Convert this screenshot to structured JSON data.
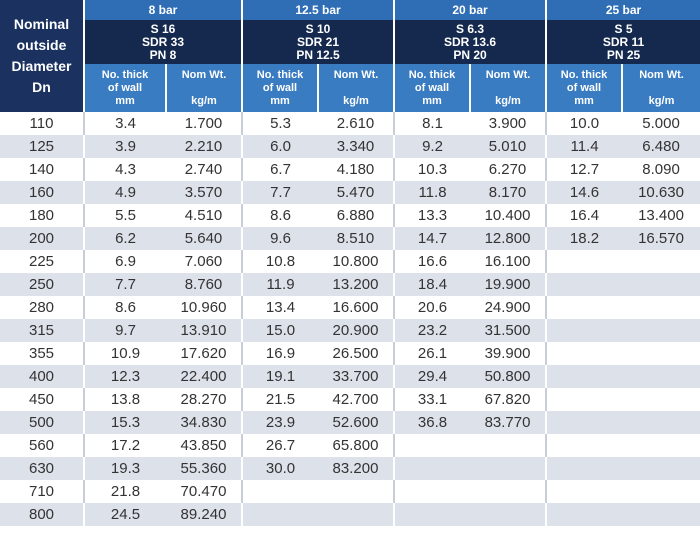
{
  "header": {
    "corner_lines": [
      "Nominal",
      "outside",
      "Diameter",
      "Dn"
    ],
    "groups": [
      {
        "pressure": "8 bar",
        "spec": [
          "S 16",
          "SDR 33",
          "PN 8"
        ]
      },
      {
        "pressure": "12.5 bar",
        "spec": [
          "S 10",
          "SDR 21",
          "PN 12.5"
        ]
      },
      {
        "pressure": "20 bar",
        "spec": [
          "S 6.3",
          "SDR 13.6",
          "PN 20"
        ]
      },
      {
        "pressure": "25 bar",
        "spec": [
          "S 5",
          "SDR 11",
          "PN 25"
        ]
      }
    ],
    "thick_label": [
      "No. thick",
      "of wall",
      "mm"
    ],
    "wt_label": [
      "Nom Wt.",
      "",
      "kg/m"
    ]
  },
  "rows": [
    [
      "110",
      "3.4",
      "1.700",
      "5.3",
      "2.610",
      "8.1",
      "3.900",
      "10.0",
      "5.000"
    ],
    [
      "125",
      "3.9",
      "2.210",
      "6.0",
      "3.340",
      "9.2",
      "5.010",
      "11.4",
      "6.480"
    ],
    [
      "140",
      "4.3",
      "2.740",
      "6.7",
      "4.180",
      "10.3",
      "6.270",
      "12.7",
      "8.090"
    ],
    [
      "160",
      "4.9",
      "3.570",
      "7.7",
      "5.470",
      "11.8",
      "8.170",
      "14.6",
      "10.630"
    ],
    [
      "180",
      "5.5",
      "4.510",
      "8.6",
      "6.880",
      "13.3",
      "10.400",
      "16.4",
      "13.400"
    ],
    [
      "200",
      "6.2",
      "5.640",
      "9.6",
      "8.510",
      "14.7",
      "12.800",
      "18.2",
      "16.570"
    ],
    [
      "225",
      "6.9",
      "7.060",
      "10.8",
      "10.800",
      "16.6",
      "16.100",
      "",
      ""
    ],
    [
      "250",
      "7.7",
      "8.760",
      "11.9",
      "13.200",
      "18.4",
      "19.900",
      "",
      ""
    ],
    [
      "280",
      "8.6",
      "10.960",
      "13.4",
      "16.600",
      "20.6",
      "24.900",
      "",
      ""
    ],
    [
      "315",
      "9.7",
      "13.910",
      "15.0",
      "20.900",
      "23.2",
      "31.500",
      "",
      ""
    ],
    [
      "355",
      "10.9",
      "17.620",
      "16.9",
      "26.500",
      "26.1",
      "39.900",
      "",
      ""
    ],
    [
      "400",
      "12.3",
      "22.400",
      "19.1",
      "33.700",
      "29.4",
      "50.800",
      "",
      ""
    ],
    [
      "450",
      "13.8",
      "28.270",
      "21.5",
      "42.700",
      "33.1",
      "67.820",
      "",
      ""
    ],
    [
      "500",
      "15.3",
      "34.830",
      "23.9",
      "52.600",
      "36.8",
      "83.770",
      "",
      ""
    ],
    [
      "560",
      "17.2",
      "43.850",
      "26.7",
      "65.800",
      "",
      "",
      "",
      ""
    ],
    [
      "630",
      "19.3",
      "55.360",
      "30.0",
      "83.200",
      "",
      "",
      "",
      ""
    ],
    [
      "710",
      "21.8",
      "70.470",
      "",
      "",
      "",
      "",
      "",
      ""
    ],
    [
      "800",
      "24.5",
      "89.240",
      "",
      "",
      "",
      "",
      "",
      ""
    ]
  ]
}
